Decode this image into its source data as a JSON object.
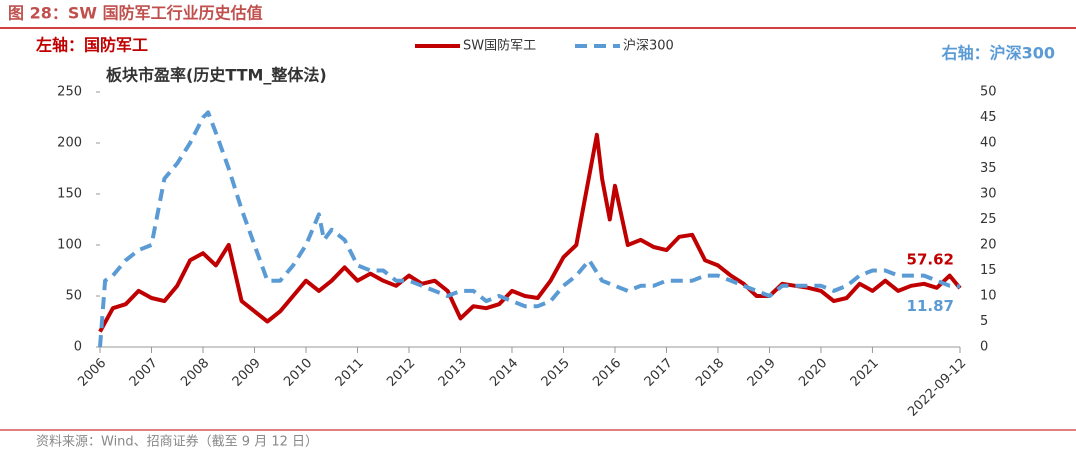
{
  "chart_data": {
    "type": "line",
    "title": "图 28：SW 国防军工行业历史估值",
    "left_label": "左轴：国防军工",
    "right_label": "右轴：沪深300",
    "subtitle": "板块市盈率(历史TTM_整体法)",
    "source": "资料来源：Wind、招商证券（截至 9 月 12 日）",
    "xlim": [
      2006,
      2022.7
    ],
    "xticks": [
      2006,
      2007,
      2008,
      2009,
      2010,
      2011,
      2012,
      2013,
      2014,
      2015,
      2016,
      2017,
      2018,
      2019,
      2020,
      2021,
      {
        "value": 2022.7,
        "label": "2022-09-12"
      }
    ],
    "ylim": [
      0,
      250
    ],
    "yticks": [
      0,
      50,
      100,
      150,
      200,
      250
    ],
    "y2lim": [
      0,
      50
    ],
    "y2ticks": [
      0,
      5,
      10,
      15,
      20,
      25,
      30,
      35,
      40,
      45,
      50
    ],
    "series": [
      {
        "name": "SW国防军工",
        "color": "#c00000",
        "x": [
          2006,
          2006.25,
          2006.5,
          2006.75,
          2007,
          2007.25,
          2007.5,
          2007.75,
          2008,
          2008.25,
          2008.5,
          2008.75,
          2009,
          2009.25,
          2009.5,
          2009.75,
          2010,
          2010.25,
          2010.5,
          2010.75,
          2011,
          2011.25,
          2011.5,
          2011.75,
          2012,
          2012.25,
          2012.5,
          2012.75,
          2013,
          2013.25,
          2013.5,
          2013.75,
          2014,
          2014.25,
          2014.5,
          2014.75,
          2015,
          2015.25,
          2015.65,
          2015.75,
          2015.9,
          2016,
          2016.25,
          2016.5,
          2016.75,
          2017,
          2017.25,
          2017.5,
          2017.75,
          2018,
          2018.25,
          2018.5,
          2018.75,
          2019,
          2019.25,
          2019.5,
          2019.75,
          2020,
          2020.25,
          2020.5,
          2020.75,
          2021,
          2021.25,
          2021.5,
          2021.75,
          2022,
          2022.25,
          2022.5,
          2022.7
        ],
        "values": [
          15,
          38,
          42,
          55,
          48,
          45,
          60,
          85,
          92,
          80,
          100,
          45,
          35,
          25,
          35,
          50,
          65,
          55,
          65,
          78,
          65,
          72,
          65,
          60,
          70,
          62,
          65,
          55,
          28,
          40,
          38,
          42,
          55,
          50,
          48,
          65,
          88,
          100,
          208,
          165,
          125,
          158,
          100,
          105,
          98,
          95,
          108,
          110,
          85,
          80,
          70,
          62,
          50,
          50,
          62,
          60,
          58,
          55,
          45,
          48,
          62,
          55,
          65,
          55,
          60,
          62,
          58,
          70,
          57.62
        ]
      },
      {
        "name": "沪深300",
        "color": "#5b9bd5",
        "axis": "y2",
        "x": [
          2006,
          2006.1,
          2006.25,
          2006.5,
          2006.75,
          2007,
          2007.25,
          2007.5,
          2007.75,
          2008,
          2008.1,
          2008.25,
          2008.5,
          2008.75,
          2009,
          2009.25,
          2009.5,
          2009.75,
          2010,
          2010.25,
          2010.35,
          2010.5,
          2010.75,
          2011,
          2011.25,
          2011.5,
          2011.75,
          2012,
          2012.25,
          2012.5,
          2012.75,
          2013,
          2013.25,
          2013.5,
          2013.75,
          2014,
          2014.25,
          2014.5,
          2014.75,
          2015,
          2015.25,
          2015.5,
          2015.75,
          2016,
          2016.25,
          2016.5,
          2016.75,
          2017,
          2017.25,
          2017.5,
          2017.75,
          2018,
          2018.25,
          2018.5,
          2018.75,
          2019,
          2019.25,
          2019.5,
          2019.75,
          2020,
          2020.25,
          2020.5,
          2020.75,
          2021,
          2021.25,
          2021.5,
          2021.75,
          2022,
          2022.25,
          2022.5,
          2022.7
        ],
        "values": [
          0,
          13,
          14,
          17,
          19,
          20,
          33,
          36,
          40,
          45,
          46,
          42,
          35,
          27,
          20,
          13,
          13,
          16,
          20,
          26,
          21,
          23,
          21,
          16,
          15,
          15,
          13,
          13,
          12,
          11,
          10,
          11,
          11,
          9,
          10,
          9,
          8,
          8,
          9,
          12,
          14,
          17,
          13,
          12,
          11,
          12,
          12,
          13,
          13,
          13,
          14,
          14,
          13,
          12,
          11,
          10,
          12,
          12,
          12,
          12,
          11,
          12,
          14,
          15,
          15,
          14,
          14,
          14,
          13,
          12,
          11.87
        ]
      }
    ]
  }
}
